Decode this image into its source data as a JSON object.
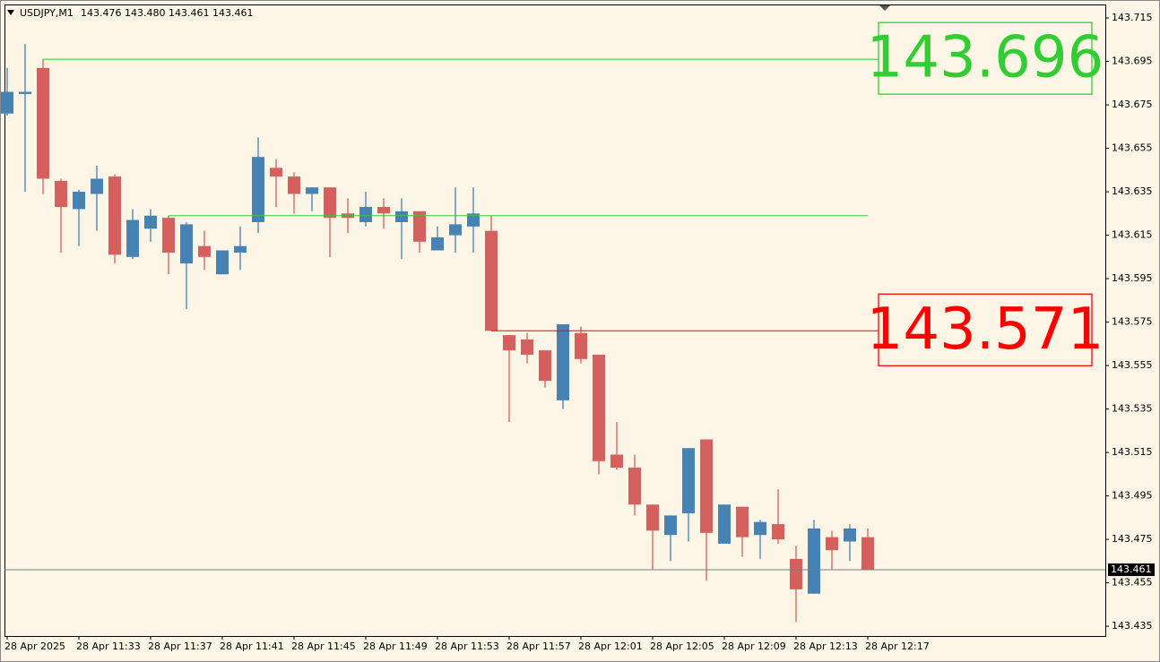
{
  "chart_data": {
    "type": "candlestick",
    "title": "USDJPY,M1",
    "header_ohlc": "143.476 143.480 143.461 143.461",
    "categories": [
      "28 Apr 2025",
      null,
      null,
      null,
      "28 Apr 11:33",
      null,
      null,
      null,
      "28 Apr 11:37",
      null,
      null,
      null,
      "28 Apr 11:41",
      null,
      null,
      null,
      "28 Apr 11:45",
      null,
      null,
      null,
      "28 Apr 11:49",
      null,
      null,
      null,
      "28 Apr 11:53",
      null,
      null,
      null,
      "28 Apr 11:57",
      null,
      null,
      null,
      "28 Apr 12:01",
      null,
      null,
      null,
      "28 Apr 12:05",
      null,
      null,
      null,
      "28 Apr 12:09",
      null,
      null,
      null,
      "28 Apr 12:13",
      null,
      null,
      null,
      "28 Apr 12:17"
    ],
    "open": [
      143.671,
      143.68,
      143.692,
      143.64,
      143.627,
      143.634,
      143.642,
      143.605,
      143.618,
      143.623,
      143.602,
      143.61,
      143.597,
      143.607,
      143.621,
      143.646,
      143.642,
      143.634,
      143.637,
      143.625,
      143.621,
      143.628,
      143.621,
      143.626,
      143.608,
      143.615,
      143.619,
      143.617,
      143.569,
      143.567,
      143.562,
      143.539,
      143.57,
      143.56,
      143.514,
      143.508,
      143.491,
      143.477,
      143.487,
      143.521,
      143.473,
      143.49,
      143.477,
      143.482,
      143.466,
      143.45,
      143.476,
      143.474,
      143.476
    ],
    "high": [
      143.692,
      143.703,
      143.696,
      143.641,
      143.636,
      143.647,
      143.643,
      143.627,
      143.627,
      143.624,
      143.621,
      143.617,
      143.608,
      143.619,
      143.66,
      143.65,
      143.644,
      143.637,
      143.637,
      143.632,
      143.635,
      143.632,
      143.632,
      143.626,
      143.619,
      143.637,
      143.637,
      143.624,
      143.569,
      143.57,
      143.562,
      143.574,
      143.573,
      143.56,
      143.529,
      143.514,
      143.491,
      143.486,
      143.517,
      143.521,
      143.491,
      143.49,
      143.484,
      143.498,
      143.472,
      143.484,
      143.479,
      143.482,
      143.48
    ],
    "low": [
      143.67,
      143.635,
      143.634,
      143.607,
      143.61,
      143.617,
      143.602,
      143.604,
      143.612,
      143.597,
      143.581,
      143.599,
      143.597,
      143.599,
      143.616,
      143.628,
      143.625,
      143.626,
      143.605,
      143.616,
      143.619,
      143.618,
      143.604,
      143.607,
      143.608,
      143.607,
      143.607,
      143.571,
      143.529,
      143.556,
      143.545,
      143.535,
      143.556,
      143.505,
      143.507,
      143.486,
      143.461,
      143.465,
      143.474,
      143.456,
      143.473,
      143.467,
      143.466,
      143.473,
      143.437,
      143.45,
      143.461,
      143.465,
      143.461
    ],
    "close": [
      143.681,
      143.681,
      143.641,
      143.628,
      143.635,
      143.641,
      143.606,
      143.622,
      143.624,
      143.607,
      143.62,
      143.605,
      143.608,
      143.61,
      143.651,
      143.642,
      143.634,
      143.637,
      143.623,
      143.623,
      143.628,
      143.625,
      143.626,
      143.612,
      143.614,
      143.62,
      143.625,
      143.571,
      143.562,
      143.56,
      143.548,
      143.574,
      143.558,
      143.511,
      143.508,
      143.491,
      143.479,
      143.486,
      143.517,
      143.478,
      143.491,
      143.476,
      143.483,
      143.475,
      143.452,
      143.48,
      143.47,
      143.48,
      143.461
    ],
    "up_color": "#4682b4",
    "down_color": "#d5605e",
    "levels": [
      {
        "value": 143.696,
        "label": "143.696",
        "color": "#32cd32"
      },
      {
        "value": 143.624,
        "color": "#32cd32"
      },
      {
        "value": 143.571,
        "label": "143.571",
        "color": "#ff0000"
      }
    ],
    "current_price": 143.461,
    "ylim": [
      143.4305,
      143.7212
    ],
    "yticks": [
      143.435,
      143.455,
      143.475,
      143.495,
      143.515,
      143.535,
      143.555,
      143.575,
      143.595,
      143.615,
      143.635,
      143.655,
      143.675,
      143.695,
      143.715
    ]
  }
}
